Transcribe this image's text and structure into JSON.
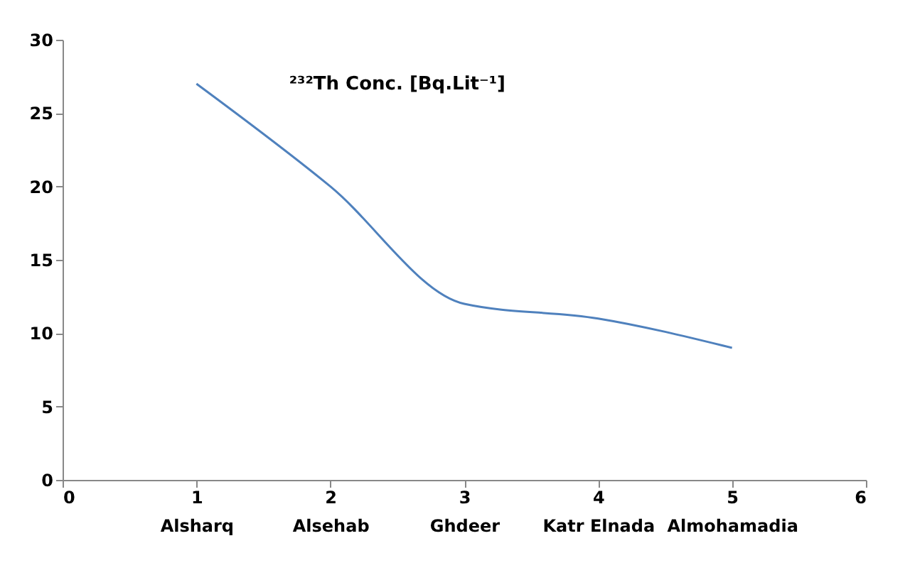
{
  "chart_data": {
    "type": "line",
    "title": "²³²Th Conc. [Bq.Lit⁻¹]",
    "x": [
      1,
      2,
      3,
      4,
      5
    ],
    "series": [
      {
        "color": "#4f81bd",
        "values": [
          27,
          20,
          12,
          11,
          9
        ]
      }
    ],
    "xlim": [
      0,
      6
    ],
    "xticks": [
      0,
      {
        "value": 1,
        "label": "1\nAlsharq"
      },
      {
        "value": 2,
        "label": "2\nAlsehab"
      },
      {
        "value": 3,
        "label": "3\nGhdeer"
      },
      {
        "value": 4,
        "label": "4\nKatr Elnada"
      },
      {
        "value": 5,
        "label": "5\nAlmohamadia"
      },
      6
    ],
    "ylim": [
      0,
      30
    ],
    "yticks": [
      0,
      5,
      10,
      15,
      20,
      25,
      30
    ],
    "grid": false,
    "marker": "none",
    "line_style": "solid"
  }
}
